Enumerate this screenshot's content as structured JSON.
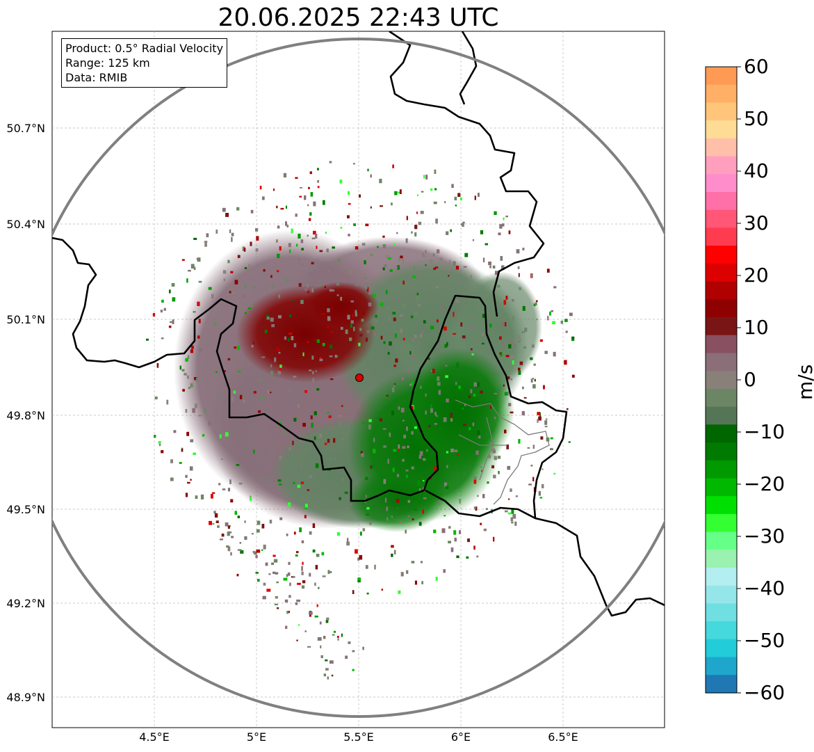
{
  "title": "20.06.2025 22:43 UTC",
  "info": {
    "product": "Product: 0.5° Radial Velocity",
    "range": "Range: 125 km",
    "data": "Data: RMIB"
  },
  "axes": {
    "lon_ticks": [
      "4.5°E",
      "5°E",
      "5.5°E",
      "6°E",
      "6.5°E"
    ],
    "lat_ticks": [
      "50.7°N",
      "50.4°N",
      "50.1°N",
      "49.8°N",
      "49.5°N",
      "49.2°N",
      "48.9°N"
    ]
  },
  "colorbar": {
    "label": "m/s",
    "ticks": [
      "60",
      "50",
      "40",
      "30",
      "20",
      "10",
      "0",
      "−10",
      "−20",
      "−30",
      "−40",
      "−50",
      "−60"
    ],
    "min": -60,
    "max": 60,
    "colors": [
      "#ff9a55",
      "#ffb066",
      "#ffc57a",
      "#ffdc96",
      "#ffbfa8",
      "#ff9fbd",
      "#ff8ccb",
      "#ff70a8",
      "#ff5775",
      "#ff3b4f",
      "#ff0000",
      "#dd0000",
      "#b00000",
      "#8f0000",
      "#7a1515",
      "#885060",
      "#8a6e78",
      "#888079",
      "#6c8665",
      "#557557",
      "#006600",
      "#007a00",
      "#009900",
      "#00b800",
      "#00e000",
      "#33ff33",
      "#66ff88",
      "#99f2b0",
      "#b3eef0",
      "#95e6e8",
      "#6fdfe2",
      "#45d8dd",
      "#22ccd8",
      "#1ea6cc",
      "#1f78b4"
    ]
  },
  "radar_site": {
    "lon": 5.5,
    "lat": 49.91,
    "color": "#dd0000"
  },
  "colors": {
    "approaching": "#007a00",
    "receding": "#7a0000",
    "neutral": "#8a7a7e",
    "range_ring": "#808080"
  }
}
